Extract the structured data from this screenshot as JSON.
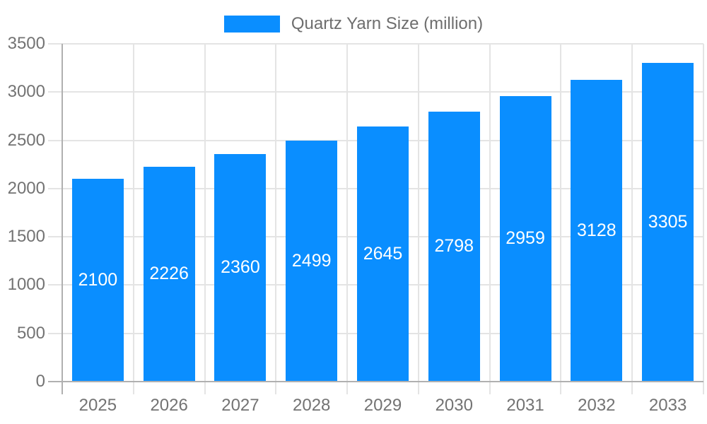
{
  "legend": {
    "items": [
      {
        "label": "Quartz Yarn Size (million)",
        "color": "#0a8eff"
      }
    ]
  },
  "chart_data": {
    "type": "bar",
    "title": "Quartz Yarn Size (million)",
    "categories": [
      "2025",
      "2026",
      "2027",
      "2028",
      "2029",
      "2030",
      "2031",
      "2032",
      "2033"
    ],
    "series": [
      {
        "name": "Quartz Yarn Size (million)",
        "values": [
          2100,
          2226,
          2360,
          2499,
          2645,
          2798,
          2959,
          3128,
          3305
        ]
      }
    ],
    "xlabel": "",
    "ylabel": "",
    "ylim": [
      0,
      3500
    ],
    "ytick_step": 500,
    "ytick_labels": [
      "0",
      "500",
      "1000",
      "1500",
      "2000",
      "2500",
      "3000",
      "3500"
    ],
    "grid": true,
    "legend_position": "top-center",
    "bar_label_position": "inside-center",
    "colors": {
      "bar": "#0a8eff",
      "bar_label": "#ffffff",
      "axis": "#b0b0b0",
      "gridline": "#e4e4e4",
      "tick_label": "#737373",
      "legend_text": "#6e6e6e",
      "background": "#ffffff"
    }
  }
}
